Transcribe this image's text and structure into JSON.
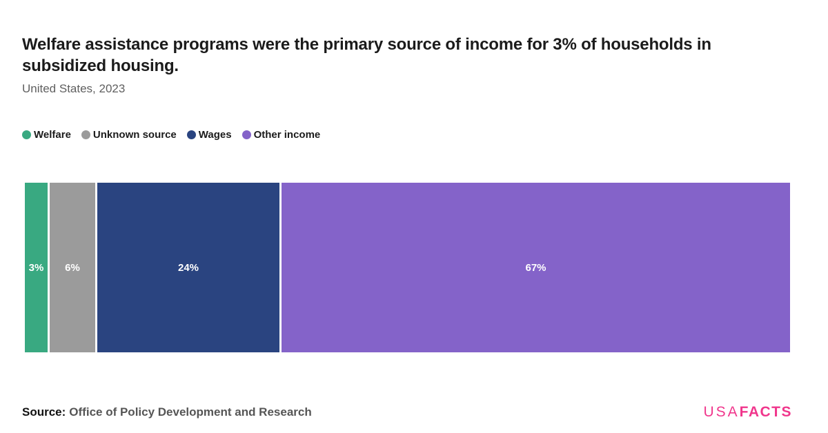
{
  "header": {
    "title": "Welfare assistance programs were the primary source of income for 3% of households in subsidized housing.",
    "subtitle": "United States, 2023"
  },
  "legend": [
    {
      "label": "Welfare",
      "color": "#39a981"
    },
    {
      "label": "Unknown source",
      "color": "#9b9b9b"
    },
    {
      "label": "Wages",
      "color": "#2a4480"
    },
    {
      "label": "Other income",
      "color": "#8463c9"
    }
  ],
  "chart_data": {
    "type": "bar",
    "variant": "horizontal-stacked-100-percent",
    "title": "Welfare assistance programs were the primary source of income for 3% of households in subsidized housing.",
    "subtitle": "United States, 2023",
    "categories": [
      "Welfare",
      "Unknown source",
      "Wages",
      "Other income"
    ],
    "values": [
      3,
      6,
      24,
      67
    ],
    "data_labels": [
      "3%",
      "6%",
      "24%",
      "67%"
    ],
    "colors": [
      "#39a981",
      "#9b9b9b",
      "#2a4480",
      "#8463c9"
    ],
    "unit": "%",
    "axis": "none",
    "grid": false,
    "legend_position": "top-left",
    "label_text_color": "#ffffff"
  },
  "footer": {
    "source_label": "Source:",
    "source_text": "Office of Policy Development and Research"
  },
  "logo": {
    "part1": "USA",
    "part2": "FACTS",
    "color": "#f0368c"
  }
}
